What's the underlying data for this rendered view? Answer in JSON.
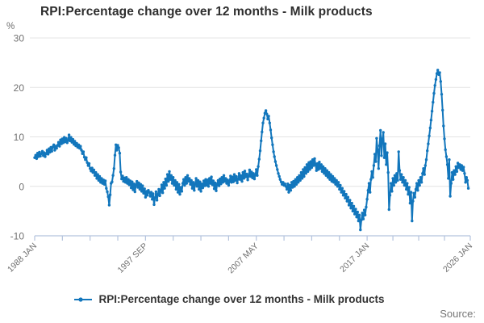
{
  "header": {
    "title": "RPI:Percentage change over 12 months - Milk products"
  },
  "axes": {
    "y_unit": "%"
  },
  "legend": {
    "label": "RPI:Percentage change over 12 months - Milk products"
  },
  "footer": {
    "source_label": "Source:"
  },
  "colors": {
    "line": "#1276bc",
    "grid": "#e4e4e4",
    "axis": "#b4c3dd",
    "tick_text": "#707070",
    "title_text": "#2e2e2e"
  },
  "chart_data": {
    "type": "line",
    "title": "RPI:Percentage change over 12 months - Milk products",
    "ylabel": "%",
    "ylim": [
      -10,
      30
    ],
    "yticks": [
      30,
      20,
      10,
      0,
      -10
    ],
    "grid": "horizontal-only",
    "legend_position": "bottom-center",
    "frequency": "monthly",
    "x_start": "1988 JAN",
    "x_end": "2025 NOV",
    "x_domain_months": [
      0,
      456
    ],
    "xticks": {
      "minor_count": 17,
      "minor_months": [
        0,
        29,
        58,
        87,
        116,
        145,
        174,
        203,
        232,
        261,
        290,
        319,
        348,
        375,
        402,
        429,
        456
      ],
      "labeled": [
        {
          "tick_index": 0,
          "month": 0,
          "label": "1988 JAN"
        },
        {
          "tick_index": 4,
          "month": 116,
          "label": "1997 SEP"
        },
        {
          "tick_index": 8,
          "month": 232,
          "label": "2007 MAY"
        },
        {
          "tick_index": 12,
          "month": 348,
          "label": "2017 JAN"
        },
        {
          "tick_index": 16,
          "month": 456,
          "label": "2026 JAN"
        }
      ]
    },
    "series": [
      {
        "name": "RPI:Percentage change over 12 months - Milk products",
        "values": [
          5.8,
          6.3,
          5.6,
          6.7,
          6.0,
          6.9,
          6.1,
          6.6,
          7.1,
          6.2,
          6.8,
          6.0,
          6.6,
          7.3,
          6.5,
          7.6,
          6.9,
          7.9,
          7.1,
          8.0,
          8.4,
          7.3,
          8.1,
          7.7,
          8.3,
          8.9,
          8.1,
          9.4,
          8.6,
          9.6,
          8.8,
          9.9,
          9.0,
          9.7,
          8.8,
          9.3,
          10.4,
          9.2,
          9.9,
          8.9,
          9.5,
          8.5,
          9.1,
          8.2,
          8.7,
          7.9,
          8.4,
          7.7,
          8.1,
          7.3,
          6.6,
          7.0,
          5.9,
          5.4,
          5.8,
          4.8,
          4.2,
          4.6,
          3.6,
          3.1,
          3.7,
          2.8,
          3.3,
          2.2,
          2.8,
          1.6,
          2.4,
          1.2,
          2.0,
          0.8,
          1.6,
          0.6,
          1.3,
          0.4,
          1.1,
          -0.4,
          -1.1,
          -2.1,
          -3.8,
          -1.7,
          0.6,
          0.9,
          2.2,
          3.6,
          6.3,
          8.4,
          7.3,
          8.3,
          7.8,
          6.7,
          2.9,
          1.5,
          2.1,
          1.0,
          1.7,
          0.8,
          1.8,
          0.6,
          1.4,
          0.3,
          1.1,
          -0.3,
          0.9,
          -0.7,
          0.5,
          -1.1,
          0.2,
          1.0,
          -0.2,
          0.7,
          -0.6,
          0.4,
          -1.0,
          0.1,
          -1.4,
          -0.5,
          -2.2,
          -1.0,
          -1.8,
          -0.8,
          -1.2,
          -2.0,
          -1.2,
          -2.6,
          -1.5,
          -3.7,
          -2.3,
          -1.1,
          -2.8,
          -1.6,
          -0.6,
          -1.9,
          -0.9,
          0.3,
          -1.3,
          0.8,
          -0.4,
          1.5,
          0.2,
          2.4,
          1.0,
          3.0,
          1.4,
          2.2,
          0.6,
          1.8,
          0.2,
          1.2,
          -0.6,
          0.8,
          -1.2,
          0.4,
          -1.6,
          -0.2,
          -1.0,
          0.6,
          1.4,
          0.2,
          1.8,
          0.6,
          2.2,
          1.0,
          1.6,
          0.4,
          1.2,
          -0.4,
          0.8,
          -0.8,
          0.4,
          1.6,
          0.0,
          1.2,
          -0.6,
          0.9,
          -1.0,
          0.5,
          -0.3,
          1.1,
          0.1,
          1.4,
          0.2,
          1.3,
          0.0,
          1.6,
          0.6,
          1.9,
          0.3,
          1.1,
          -0.5,
          0.7,
          -0.9,
          0.4,
          1.2,
          0.1,
          1.5,
          0.5,
          1.8,
          0.8,
          2.2,
          1.0,
          1.6,
          0.6,
          1.3,
          0.2,
          1.0,
          2.1,
          0.8,
          1.9,
          0.9,
          2.4,
          1.2,
          2.0,
          0.7,
          1.5,
          2.6,
          1.4,
          2.2,
          1.0,
          2.8,
          1.6,
          3.1,
          1.9,
          2.5,
          1.3,
          2.1,
          3.3,
          2.0,
          2.9,
          1.7,
          2.6,
          1.5,
          2.3,
          3.4,
          2.2,
          4.0,
          5.5,
          7.2,
          9.2,
          11.0,
          12.8,
          13.8,
          14.8,
          15.3,
          14.6,
          13.6,
          14.2,
          12.8,
          11.4,
          9.8,
          8.4,
          7.0,
          6.0,
          5.0,
          4.2,
          3.4,
          2.6,
          2.0,
          1.4,
          0.9,
          0.4,
          0.8,
          0.2,
          0.5,
          0.0,
          -0.6,
          0.5,
          -1.2,
          0.2,
          -0.8,
          0.8,
          -0.2,
          1.0,
          0.0,
          1.4,
          0.4,
          1.8,
          0.8,
          2.2,
          1.2,
          2.8,
          1.6,
          3.4,
          2.0,
          3.8,
          2.6,
          4.4,
          3.0,
          4.8,
          3.4,
          5.0,
          3.8,
          5.4,
          4.2,
          5.6,
          4.4,
          3.2,
          4.6,
          3.4,
          4.9,
          3.6,
          4.4,
          3.0,
          4.0,
          2.6,
          3.6,
          2.2,
          3.2,
          1.8,
          2.8,
          1.4,
          2.4,
          1.0,
          2.0,
          0.8,
          1.6,
          0.4,
          1.2,
          0.0,
          0.8,
          -0.6,
          0.2,
          -1.2,
          -0.4,
          -1.8,
          -1.0,
          -2.4,
          -1.6,
          -3.0,
          -2.2,
          -3.8,
          -2.8,
          -4.4,
          -3.4,
          -5.0,
          -4.0,
          -5.6,
          -4.6,
          -6.2,
          -5.2,
          -7.0,
          -5.8,
          -8.8,
          -6.8,
          -5.4,
          -6.6,
          -4.8,
          -5.8,
          -4.2,
          -2.6,
          -0.8,
          0.6,
          -1.2,
          1.4,
          3.0,
          1.8,
          4.2,
          6.5,
          5.0,
          9.7,
          7.4,
          3.6,
          8.2,
          11.3,
          6.2,
          9.6,
          10.9,
          5.8,
          8.6,
          4.4,
          6.8,
          2.8,
          -4.7,
          -1.8,
          0.6,
          -1.0,
          1.6,
          0.2,
          2.2,
          0.8,
          2.6,
          1.2,
          7.0,
          3.2,
          1.4,
          2.4,
          0.8,
          1.8,
          0.2,
          1.2,
          -0.6,
          0.6,
          -1.6,
          -0.2,
          -3.4,
          -1.2,
          -7.0,
          -3.0,
          -1.4,
          -2.2,
          -0.6,
          0.6,
          -0.8,
          1.2,
          0.2,
          1.8,
          0.8,
          2.6,
          3.6,
          2.4,
          4.2,
          5.4,
          7.2,
          8.6,
          10.2,
          11.8,
          13.4,
          15.2,
          17.0,
          18.8,
          20.4,
          21.6,
          22.8,
          23.5,
          22.6,
          23.0,
          21.2,
          18.6,
          15.4,
          12.2,
          9.6,
          7.4,
          6.0,
          4.4,
          1.6,
          5.4,
          -2.0,
          0.6,
          2.8,
          1.4,
          3.2,
          2.4,
          4.0,
          3.0,
          4.7,
          3.8,
          4.4,
          3.4,
          4.2,
          3.2,
          3.9,
          2.6,
          0.8,
          1.8,
          1.2,
          -0.4
        ]
      }
    ]
  }
}
